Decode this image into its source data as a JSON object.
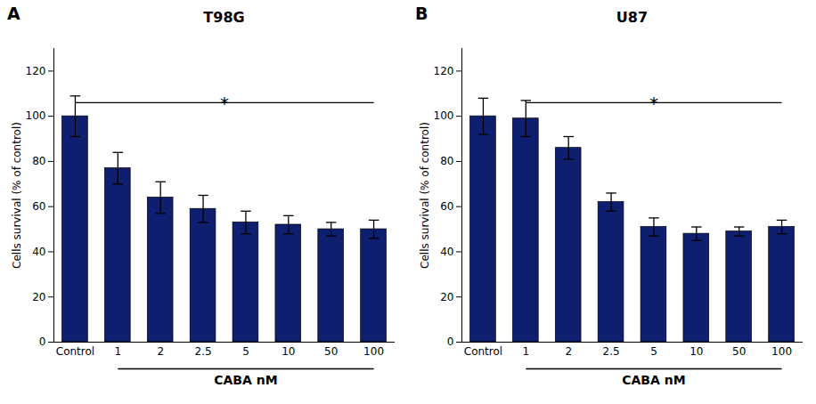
{
  "chart_data": [
    {
      "type": "bar",
      "panel_label": "A",
      "title": "T98G",
      "categories": [
        "Control",
        "1",
        "2",
        "2.5",
        "5",
        "10",
        "50",
        "100"
      ],
      "values": [
        100,
        77,
        64,
        59,
        53,
        52,
        50,
        50
      ],
      "errors": [
        9,
        7,
        7,
        6,
        5,
        4,
        3,
        4
      ],
      "color": "#0d1f6e",
      "ylabel": "Cells survival (% of control)",
      "xlabel": "CABA nM",
      "xlabel_span": [
        "1",
        "100"
      ],
      "annotations": [
        {
          "text": "*",
          "x1": "Control",
          "x2": "100",
          "y": 106
        }
      ],
      "ylim": [
        0,
        130
      ],
      "yticks": [
        0,
        20,
        40,
        60,
        80,
        100,
        120
      ]
    },
    {
      "type": "bar",
      "panel_label": "B",
      "title": "U87",
      "categories": [
        "Control",
        "1",
        "2",
        "2.5",
        "5",
        "10",
        "50",
        "100"
      ],
      "values": [
        100,
        99,
        86,
        62,
        51,
        48,
        49,
        51
      ],
      "errors": [
        8,
        8,
        5,
        4,
        4,
        3,
        2,
        3
      ],
      "color": "#0d1f6e",
      "ylabel": "Cells survival (% of control)",
      "xlabel": "CABA nM",
      "xlabel_span": [
        "1",
        "100"
      ],
      "annotations": [
        {
          "text": "*",
          "x1": "1",
          "x2": "100",
          "y": 106
        }
      ],
      "ylim": [
        0,
        130
      ],
      "yticks": [
        0,
        20,
        40,
        60,
        80,
        100,
        120
      ]
    }
  ]
}
